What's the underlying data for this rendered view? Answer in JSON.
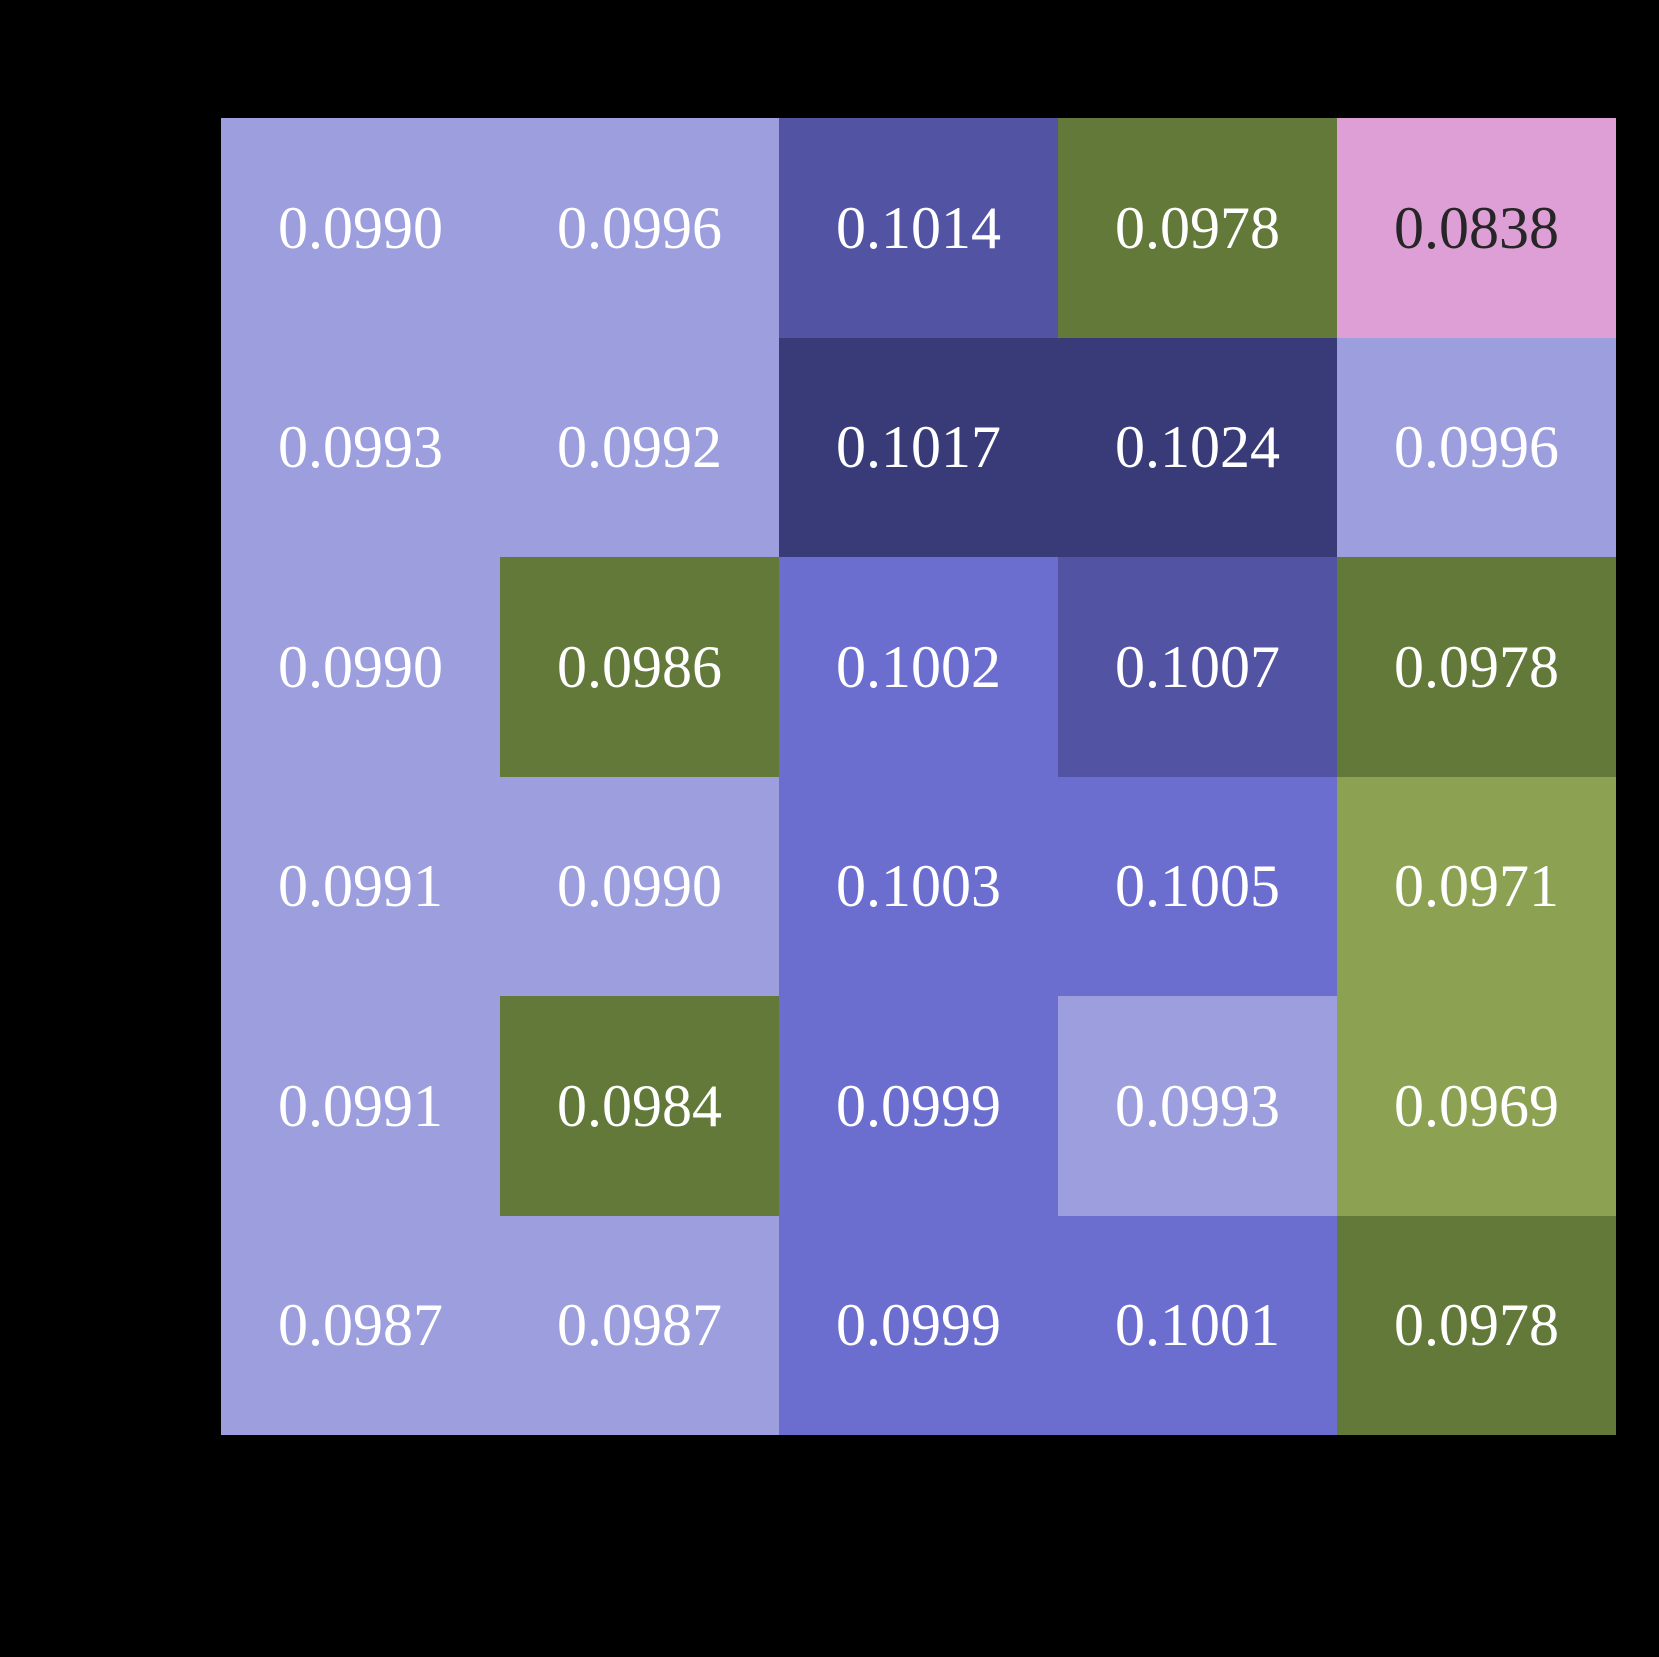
{
  "background_color": "#000000",
  "chart_data": {
    "type": "heatmap",
    "title": "",
    "xlabel": "",
    "ylabel": "",
    "grid": {
      "rows": 6,
      "cols": 5
    },
    "legend": "none",
    "values": [
      [
        0.099,
        0.0996,
        0.1014,
        0.0978,
        0.0838
      ],
      [
        0.0993,
        0.0992,
        0.1017,
        0.1024,
        0.0996
      ],
      [
        0.099,
        0.0986,
        0.1002,
        0.1007,
        0.0978
      ],
      [
        0.0991,
        0.099,
        0.1003,
        0.1005,
        0.0971
      ],
      [
        0.0991,
        0.0984,
        0.0999,
        0.0993,
        0.0969
      ],
      [
        0.0987,
        0.0987,
        0.0999,
        0.1001,
        0.0978
      ]
    ],
    "cell_labels": [
      [
        "0.0990",
        "0.0996",
        "0.1014",
        "0.0978",
        "0.0838"
      ],
      [
        "0.0993",
        "0.0992",
        "0.1017",
        "0.1024",
        "0.0996"
      ],
      [
        "0.0990",
        "0.0986",
        "0.1002",
        "0.1007",
        "0.0978"
      ],
      [
        "0.0991",
        "0.0990",
        "0.1003",
        "0.1005",
        "0.0971"
      ],
      [
        "0.0991",
        "0.0984",
        "0.0999",
        "0.0993",
        "0.0969"
      ],
      [
        "0.0987",
        "0.0987",
        "0.0999",
        "0.1001",
        "0.0978"
      ]
    ],
    "cell_colors": [
      [
        "#9c9ede",
        "#9c9ede",
        "#5254a3",
        "#637939",
        "#de9ed6"
      ],
      [
        "#9c9ede",
        "#9c9ede",
        "#393b79",
        "#393b79",
        "#9c9ede"
      ],
      [
        "#9c9ede",
        "#637939",
        "#6b6ecf",
        "#5254a3",
        "#637939"
      ],
      [
        "#9c9ede",
        "#9c9ede",
        "#6b6ecf",
        "#6b6ecf",
        "#8ca252"
      ],
      [
        "#9c9ede",
        "#637939",
        "#6b6ecf",
        "#9c9ede",
        "#8ca252"
      ],
      [
        "#9c9ede",
        "#9c9ede",
        "#6b6ecf",
        "#6b6ecf",
        "#637939"
      ]
    ],
    "text_colors": [
      [
        "#ffffff",
        "#ffffff",
        "#ffffff",
        "#ffffff",
        "#262626"
      ],
      [
        "#ffffff",
        "#ffffff",
        "#ffffff",
        "#ffffff",
        "#ffffff"
      ],
      [
        "#ffffff",
        "#ffffff",
        "#ffffff",
        "#ffffff",
        "#ffffff"
      ],
      [
        "#ffffff",
        "#ffffff",
        "#ffffff",
        "#ffffff",
        "#ffffff"
      ],
      [
        "#ffffff",
        "#ffffff",
        "#ffffff",
        "#ffffff",
        "#ffffff"
      ],
      [
        "#ffffff",
        "#ffffff",
        "#ffffff",
        "#ffffff",
        "#ffffff"
      ]
    ],
    "value_range": {
      "min": 0.0838,
      "max": 0.1024
    },
    "palette_colors": [
      "#de9ed6",
      "#8ca252",
      "#637939",
      "#9c9ede",
      "#6b6ecf",
      "#5254a3",
      "#393b79"
    ]
  }
}
